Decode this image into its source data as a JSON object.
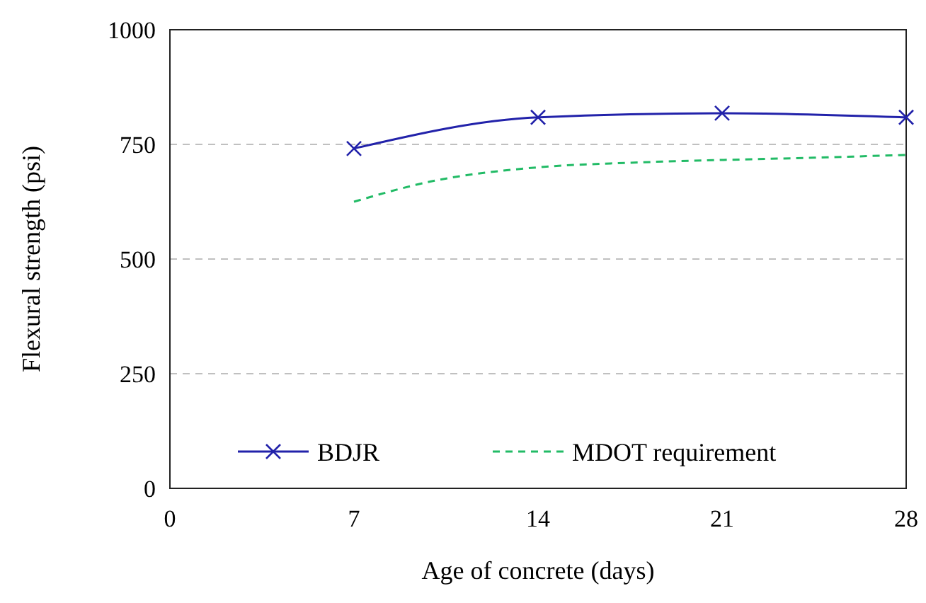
{
  "chart_data": {
    "type": "line",
    "xlabel": "Age of concrete (days)",
    "ylabel": "Flexural strength (psi)",
    "xlim": [
      0,
      28
    ],
    "xticks": [
      0,
      7,
      14,
      21,
      28
    ],
    "ylim": [
      0,
      1000
    ],
    "yticks": [
      0,
      250,
      500,
      750,
      1000
    ],
    "grid": "y",
    "legend": "bottom",
    "series": [
      {
        "name": "BDJR",
        "color": "#2222aa",
        "x": [
          7,
          14,
          21,
          28
        ],
        "values": [
          741,
          809,
          818,
          809
        ],
        "marker": "cross",
        "line_style": "solid"
      },
      {
        "name": "MDOT requirement",
        "color": "#22bb66",
        "x": [
          7,
          10,
          14,
          17.5,
          21,
          24.5,
          28
        ],
        "values": [
          625,
          670,
          700,
          710,
          716,
          721,
          727
        ],
        "marker": "none",
        "line_style": "dashed"
      }
    ]
  }
}
